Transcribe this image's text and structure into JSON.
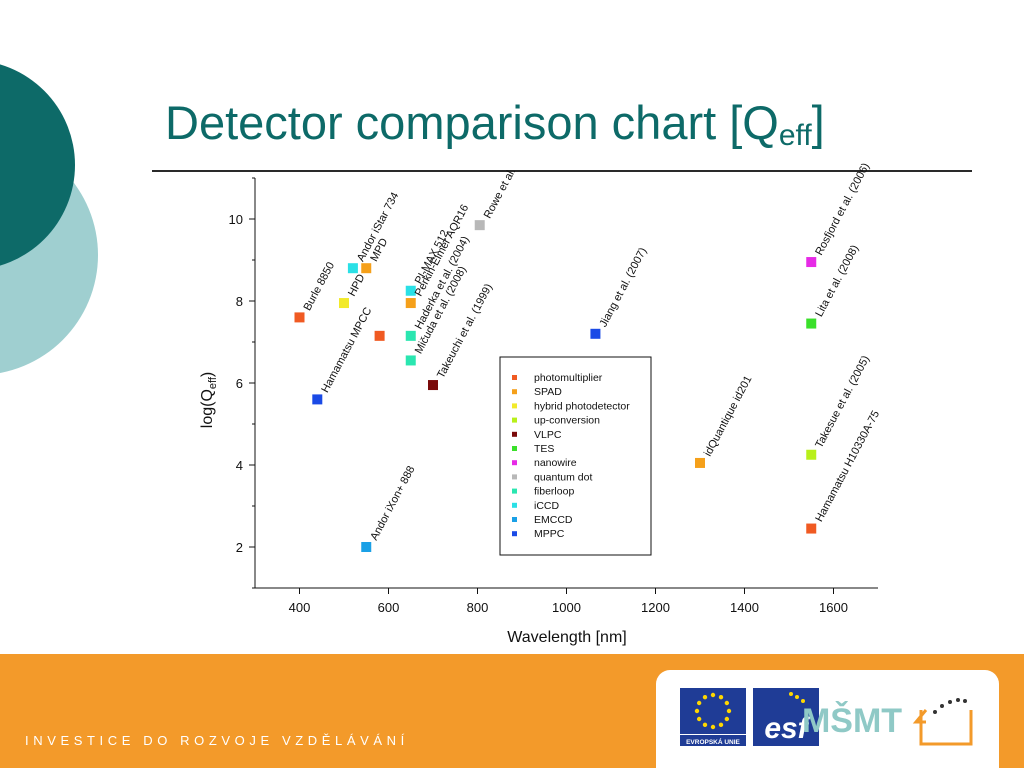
{
  "slide": {
    "title_main": "Detector comparison chart [Q",
    "title_sub": "eff",
    "title_close": "]",
    "footer_text": "INVESTICE DO ROZVOJE VZDĚLÁVÁNÍ",
    "logos": {
      "eu_label": "EVROPSKÁ UNIE",
      "esf_label": "esf",
      "msmt_label": "MŠMT"
    },
    "colors": {
      "teal": "#0d6a68",
      "light_teal": "#9fcfd0",
      "orange": "#f39a2a"
    }
  },
  "chart_data": {
    "type": "scatter",
    "xlabel": "Wavelength [nm]",
    "ylabel_main": "log(Q",
    "ylabel_sub": "eff",
    "ylabel_close": ")",
    "xlim": [
      300,
      1700
    ],
    "ylim": [
      1,
      11
    ],
    "xticks": [
      400,
      600,
      800,
      1000,
      1200,
      1400,
      1600
    ],
    "yticks": [
      2,
      4,
      6,
      8,
      10
    ],
    "grid": false,
    "legend_position": "center-right",
    "series": [
      {
        "name": "photomultiplier",
        "color": "#f05a22"
      },
      {
        "name": "SPAD",
        "color": "#f5a01a"
      },
      {
        "name": "hybrid photodetector",
        "color": "#f2ea2a"
      },
      {
        "name": "up-conversion",
        "color": "#b8f01a"
      },
      {
        "name": "VLPC",
        "color": "#7a0a0a"
      },
      {
        "name": "TES",
        "color": "#3ae02a"
      },
      {
        "name": "nanowire",
        "color": "#e62ae6"
      },
      {
        "name": "quantum dot",
        "color": "#b8b8b8"
      },
      {
        "name": "fiberloop",
        "color": "#2ae6b0"
      },
      {
        "name": "iCCD",
        "color": "#2ae0e6"
      },
      {
        "name": "EMCCD",
        "color": "#1aa0e6"
      },
      {
        "name": "MPPC",
        "color": "#1a4ae6"
      }
    ],
    "points": [
      {
        "x": 400,
        "y": 7.6,
        "series": "photomultiplier",
        "label": "Burle 8850"
      },
      {
        "x": 580,
        "y": 7.15,
        "series": "photomultiplier",
        "label": ""
      },
      {
        "x": 1550,
        "y": 2.45,
        "series": "photomultiplier",
        "label": "Hamamatsu H10330A-75"
      },
      {
        "x": 550,
        "y": 8.8,
        "series": "SPAD",
        "label": "MPD"
      },
      {
        "x": 650,
        "y": 7.95,
        "series": "SPAD",
        "label": "Perkin-Elmer AQR16"
      },
      {
        "x": 1300,
        "y": 4.05,
        "series": "SPAD",
        "label": "idQuantique id201"
      },
      {
        "x": 500,
        "y": 7.95,
        "series": "hybrid photodetector",
        "label": "HPD"
      },
      {
        "x": 1550,
        "y": 4.25,
        "series": "up-conversion",
        "label": "Takesue et al. (2005)"
      },
      {
        "x": 700,
        "y": 5.95,
        "series": "VLPC",
        "label": "Takeuchi et al. (1999)"
      },
      {
        "x": 1550,
        "y": 7.45,
        "series": "TES",
        "label": "Lita et al. (2008)"
      },
      {
        "x": 1550,
        "y": 8.95,
        "series": "nanowire",
        "label": "Rosfjord et al. (2006)"
      },
      {
        "x": 805,
        "y": 9.85,
        "series": "quantum dot",
        "label": "Rowe et al."
      },
      {
        "x": 650,
        "y": 7.15,
        "series": "fiberloop",
        "label": "Haderka et al. (2004)"
      },
      {
        "x": 650,
        "y": 6.55,
        "series": "fiberloop",
        "label": "Mičuda et al. (2008)"
      },
      {
        "x": 520,
        "y": 8.8,
        "series": "iCCD",
        "label": "Andor iStar 734"
      },
      {
        "x": 650,
        "y": 8.25,
        "series": "iCCD",
        "label": "PI-MAX 512"
      },
      {
        "x": 550,
        "y": 2.0,
        "series": "EMCCD",
        "label": "Andor iXon+ 888"
      },
      {
        "x": 1065,
        "y": 7.2,
        "series": "MPPC",
        "label": "Jiang et al. (2007)"
      },
      {
        "x": 440,
        "y": 5.6,
        "series": "MPPC",
        "label": "Hamamatsu MPCC"
      }
    ]
  }
}
